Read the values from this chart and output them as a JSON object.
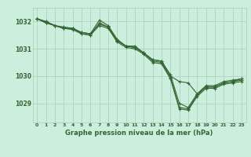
{
  "background_color": "#cceedd",
  "grid_color": "#aaccbb",
  "line_color": "#336633",
  "marker_color": "#336633",
  "title": "Graphe pression niveau de la mer (hPa)",
  "xlabel_hours": [
    0,
    1,
    2,
    3,
    4,
    5,
    6,
    7,
    8,
    9,
    10,
    11,
    12,
    13,
    14,
    15,
    16,
    17,
    18,
    19,
    20,
    21,
    22,
    23
  ],
  "ylim": [
    1028.3,
    1032.5
  ],
  "yticks": [
    1029,
    1030,
    1031,
    1032
  ],
  "series": [
    [
      1032.1,
      1032.0,
      1031.85,
      1031.75,
      1031.75,
      1031.6,
      1031.55,
      1032.05,
      1031.85,
      1031.35,
      1031.1,
      1031.1,
      1030.85,
      1030.6,
      1030.55,
      1030.0,
      1029.8,
      1029.75,
      1029.35,
      1029.65,
      1029.65,
      1029.8,
      1029.85,
      1029.9
    ],
    [
      1032.1,
      1031.95,
      1031.85,
      1031.75,
      1031.75,
      1031.55,
      1031.5,
      1031.95,
      1031.8,
      1031.3,
      1031.1,
      1031.05,
      1030.85,
      1030.55,
      1030.5,
      1029.95,
      1028.85,
      1028.8,
      1029.3,
      1029.6,
      1029.6,
      1029.75,
      1029.8,
      1029.85
    ],
    [
      1032.1,
      1031.95,
      1031.85,
      1031.75,
      1031.7,
      1031.55,
      1031.5,
      1031.85,
      1031.75,
      1031.25,
      1031.05,
      1031.0,
      1030.8,
      1030.5,
      1030.45,
      1029.9,
      1028.8,
      1028.75,
      1029.25,
      1029.55,
      1029.55,
      1029.7,
      1029.75,
      1029.8
    ],
    [
      1032.1,
      1032.0,
      1031.85,
      1031.8,
      1031.75,
      1031.6,
      1031.55,
      1031.9,
      1031.8,
      1031.3,
      1031.1,
      1031.05,
      1030.85,
      1030.6,
      1030.55,
      1030.05,
      1029.0,
      1028.85,
      1029.35,
      1029.6,
      1029.6,
      1029.75,
      1029.8,
      1029.9
    ]
  ]
}
